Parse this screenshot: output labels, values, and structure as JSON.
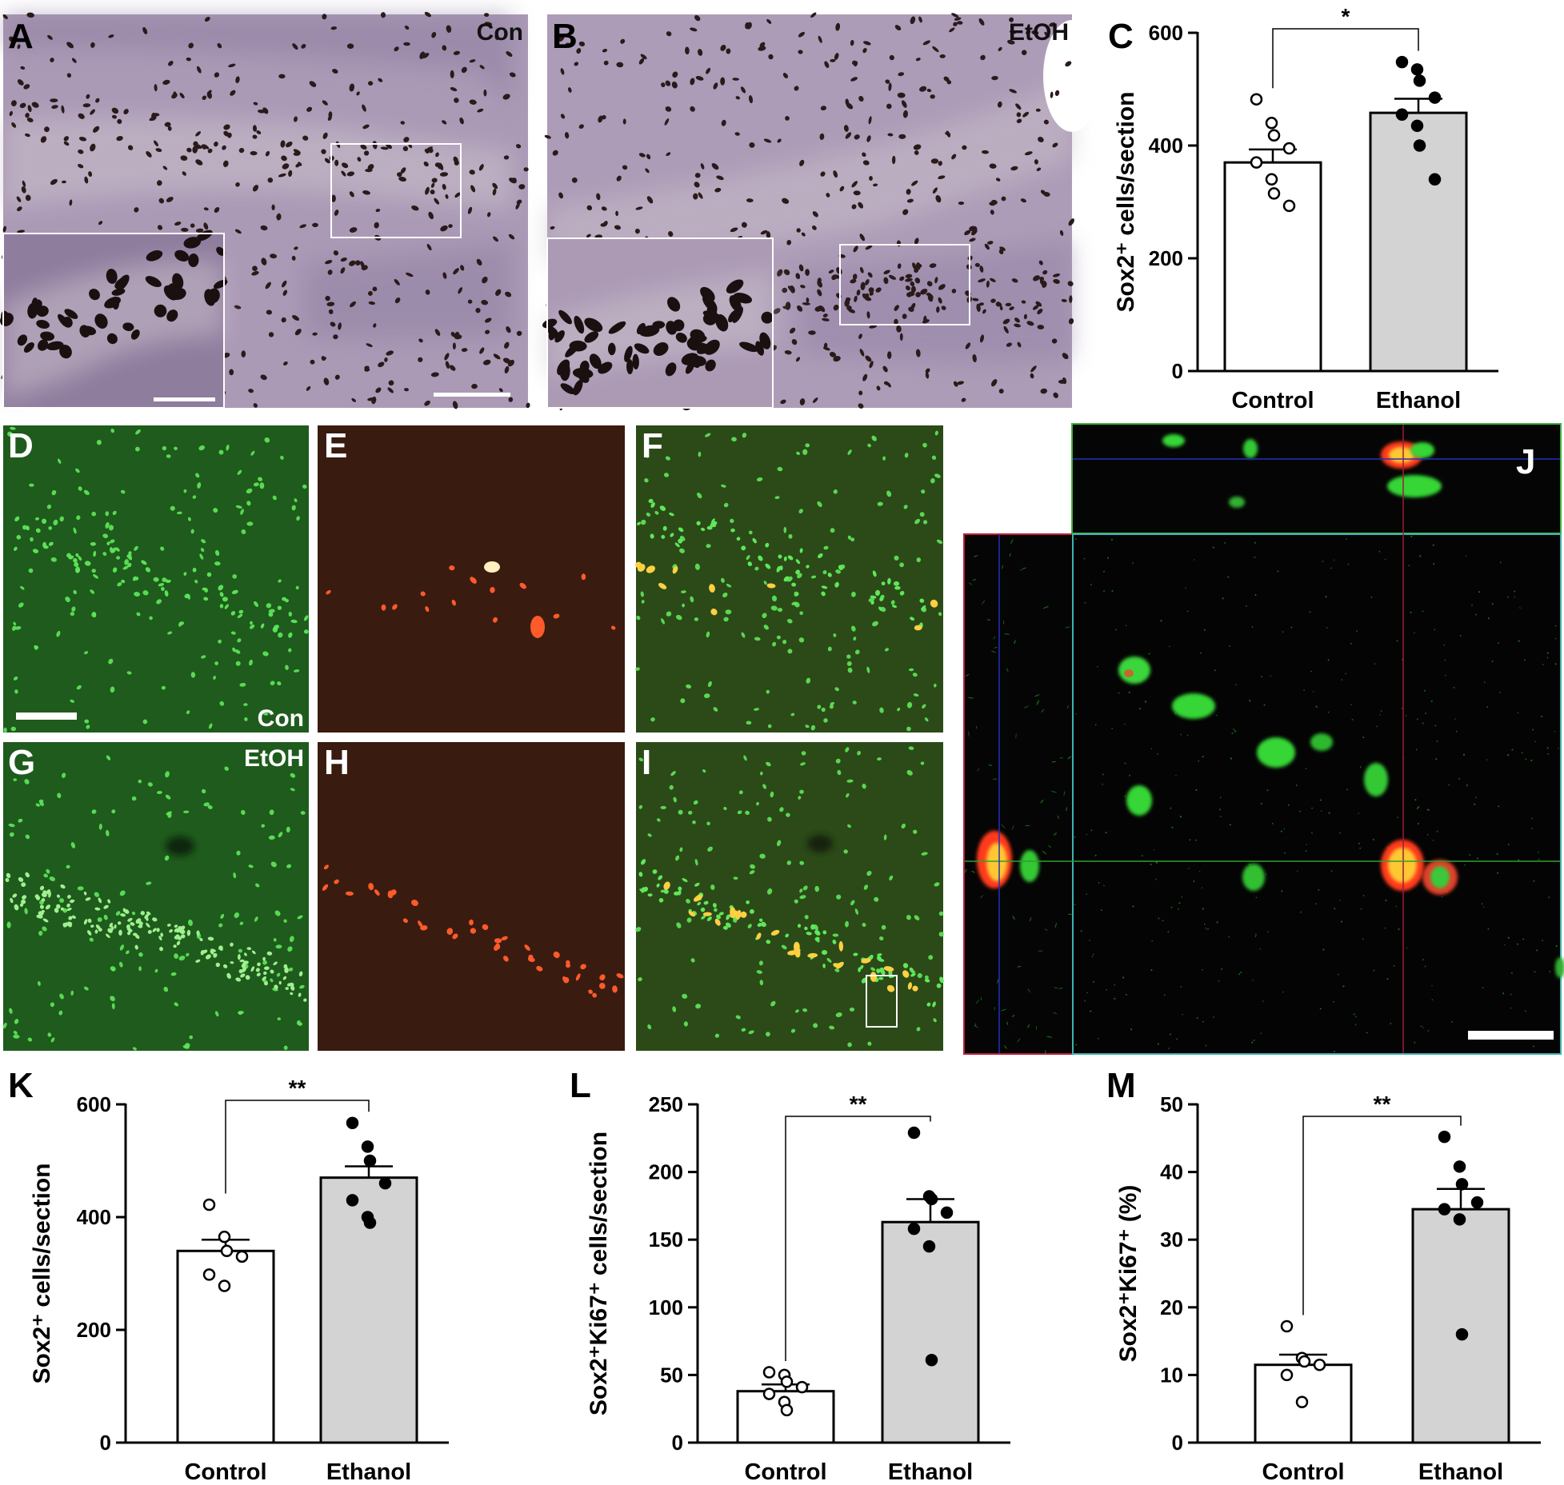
{
  "panels": {
    "A": {
      "label": "A",
      "condition": "Con"
    },
    "B": {
      "label": "B",
      "condition": "EtOH"
    },
    "C": {
      "label": "C"
    },
    "D": {
      "label": "D",
      "condition": "Con"
    },
    "E": {
      "label": "E"
    },
    "F": {
      "label": "F"
    },
    "G": {
      "label": "G",
      "condition": "EtOH"
    },
    "H": {
      "label": "H"
    },
    "I": {
      "label": "I"
    },
    "J": {
      "label": "J"
    },
    "K": {
      "label": "K"
    },
    "L": {
      "label": "L"
    },
    "M": {
      "label": "M"
    }
  },
  "colors": {
    "control_bar": "#ffffff",
    "ethanol_bar": "#d3d3d3",
    "bright_field_bg": "#aa98b4",
    "bright_field_cell": "#2a1a1a",
    "sox2_green": "#40e040",
    "ki67_red": "#ff4020",
    "merge_yellow": "#ffd040",
    "fluor_green_bg": "#1f5a1c",
    "fluor_red_bg": "#3a1a10"
  },
  "chart_data": [
    {
      "id": "C",
      "type": "bar",
      "categories": [
        "Control",
        "Ethanol"
      ],
      "values": [
        370,
        458
      ],
      "sem": [
        23,
        25
      ],
      "points": [
        [
          482,
          440,
          418,
          395,
          370,
          340,
          315,
          293
        ],
        [
          548,
          535,
          515,
          485,
          455,
          435,
          400,
          340
        ]
      ],
      "ylabel": "Sox2⁺ cells/section",
      "ylim": [
        0,
        600
      ],
      "yticks": [
        0,
        200,
        400,
        600
      ],
      "significance": "*"
    },
    {
      "id": "K",
      "type": "bar",
      "categories": [
        "Control",
        "Ethanol"
      ],
      "values": [
        340,
        470
      ],
      "sem": [
        20,
        20
      ],
      "points": [
        [
          422,
          365,
          340,
          330,
          298,
          278
        ],
        [
          567,
          525,
          500,
          460,
          430,
          400,
          390
        ]
      ],
      "ylabel": "Sox2⁺ cells/section",
      "ylim": [
        0,
        600
      ],
      "yticks": [
        0,
        200,
        400,
        600
      ],
      "significance": "**"
    },
    {
      "id": "L",
      "type": "bar",
      "categories": [
        "Control",
        "Ethanol"
      ],
      "values": [
        38,
        163
      ],
      "sem": [
        5,
        17
      ],
      "points": [
        [
          52,
          50,
          45,
          41,
          36,
          30,
          24
        ],
        [
          229,
          182,
          180,
          170,
          158,
          145,
          61
        ]
      ],
      "ylabel": "Sox2⁺Ki67⁺ cells/section",
      "ylim": [
        0,
        250
      ],
      "yticks": [
        0,
        50,
        100,
        150,
        200,
        250
      ],
      "significance": "**"
    },
    {
      "id": "M",
      "type": "bar",
      "categories": [
        "Control",
        "Ethanol"
      ],
      "values": [
        11.5,
        34.5
      ],
      "sem": [
        1.5,
        3
      ],
      "points": [
        [
          17.2,
          12.5,
          12,
          11.5,
          10,
          6
        ],
        [
          45.2,
          40.8,
          38.2,
          35.5,
          34.5,
          33,
          16
        ]
      ],
      "ylabel": "Sox2⁺Ki67⁺ (%)",
      "ylim": [
        0,
        50
      ],
      "yticks": [
        0,
        10,
        20,
        30,
        40,
        50
      ],
      "significance": "**"
    }
  ]
}
